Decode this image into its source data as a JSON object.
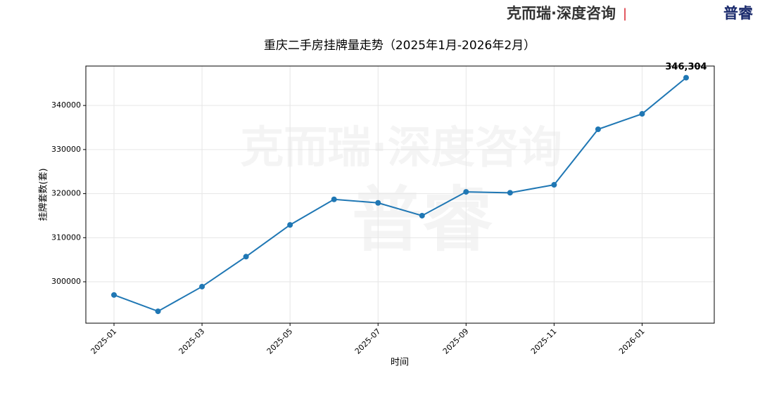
{
  "brand": {
    "name": "克而瑞·深度咨询",
    "separator": "|",
    "logo": "普睿"
  },
  "chart_data": {
    "type": "line",
    "title": "重庆二手房挂牌量走势（2025年1月-2026年2月）",
    "x_label": "时间",
    "y_label": "挂牌套数(套)",
    "categories": [
      "2025-01",
      null,
      "2025-03",
      null,
      "2025-05",
      null,
      "2025-07",
      null,
      "2025-09",
      null,
      "2025-11",
      null,
      "2026-01",
      null
    ],
    "series": [
      {
        "name": "挂牌套数",
        "color": "#1f77b4",
        "values": [
          297000,
          293300,
          298900,
          305700,
          312900,
          318700,
          317900,
          315000,
          320400,
          320200,
          322000,
          334600,
          338100,
          346304
        ],
        "value_labels": [
          null,
          null,
          null,
          null,
          null,
          null,
          null,
          null,
          null,
          null,
          null,
          null,
          null,
          "346,304"
        ]
      }
    ],
    "ylim": [
      290600,
      348950
    ],
    "yticks": [
      300000,
      310000,
      320000,
      330000,
      340000
    ],
    "grid": true
  }
}
